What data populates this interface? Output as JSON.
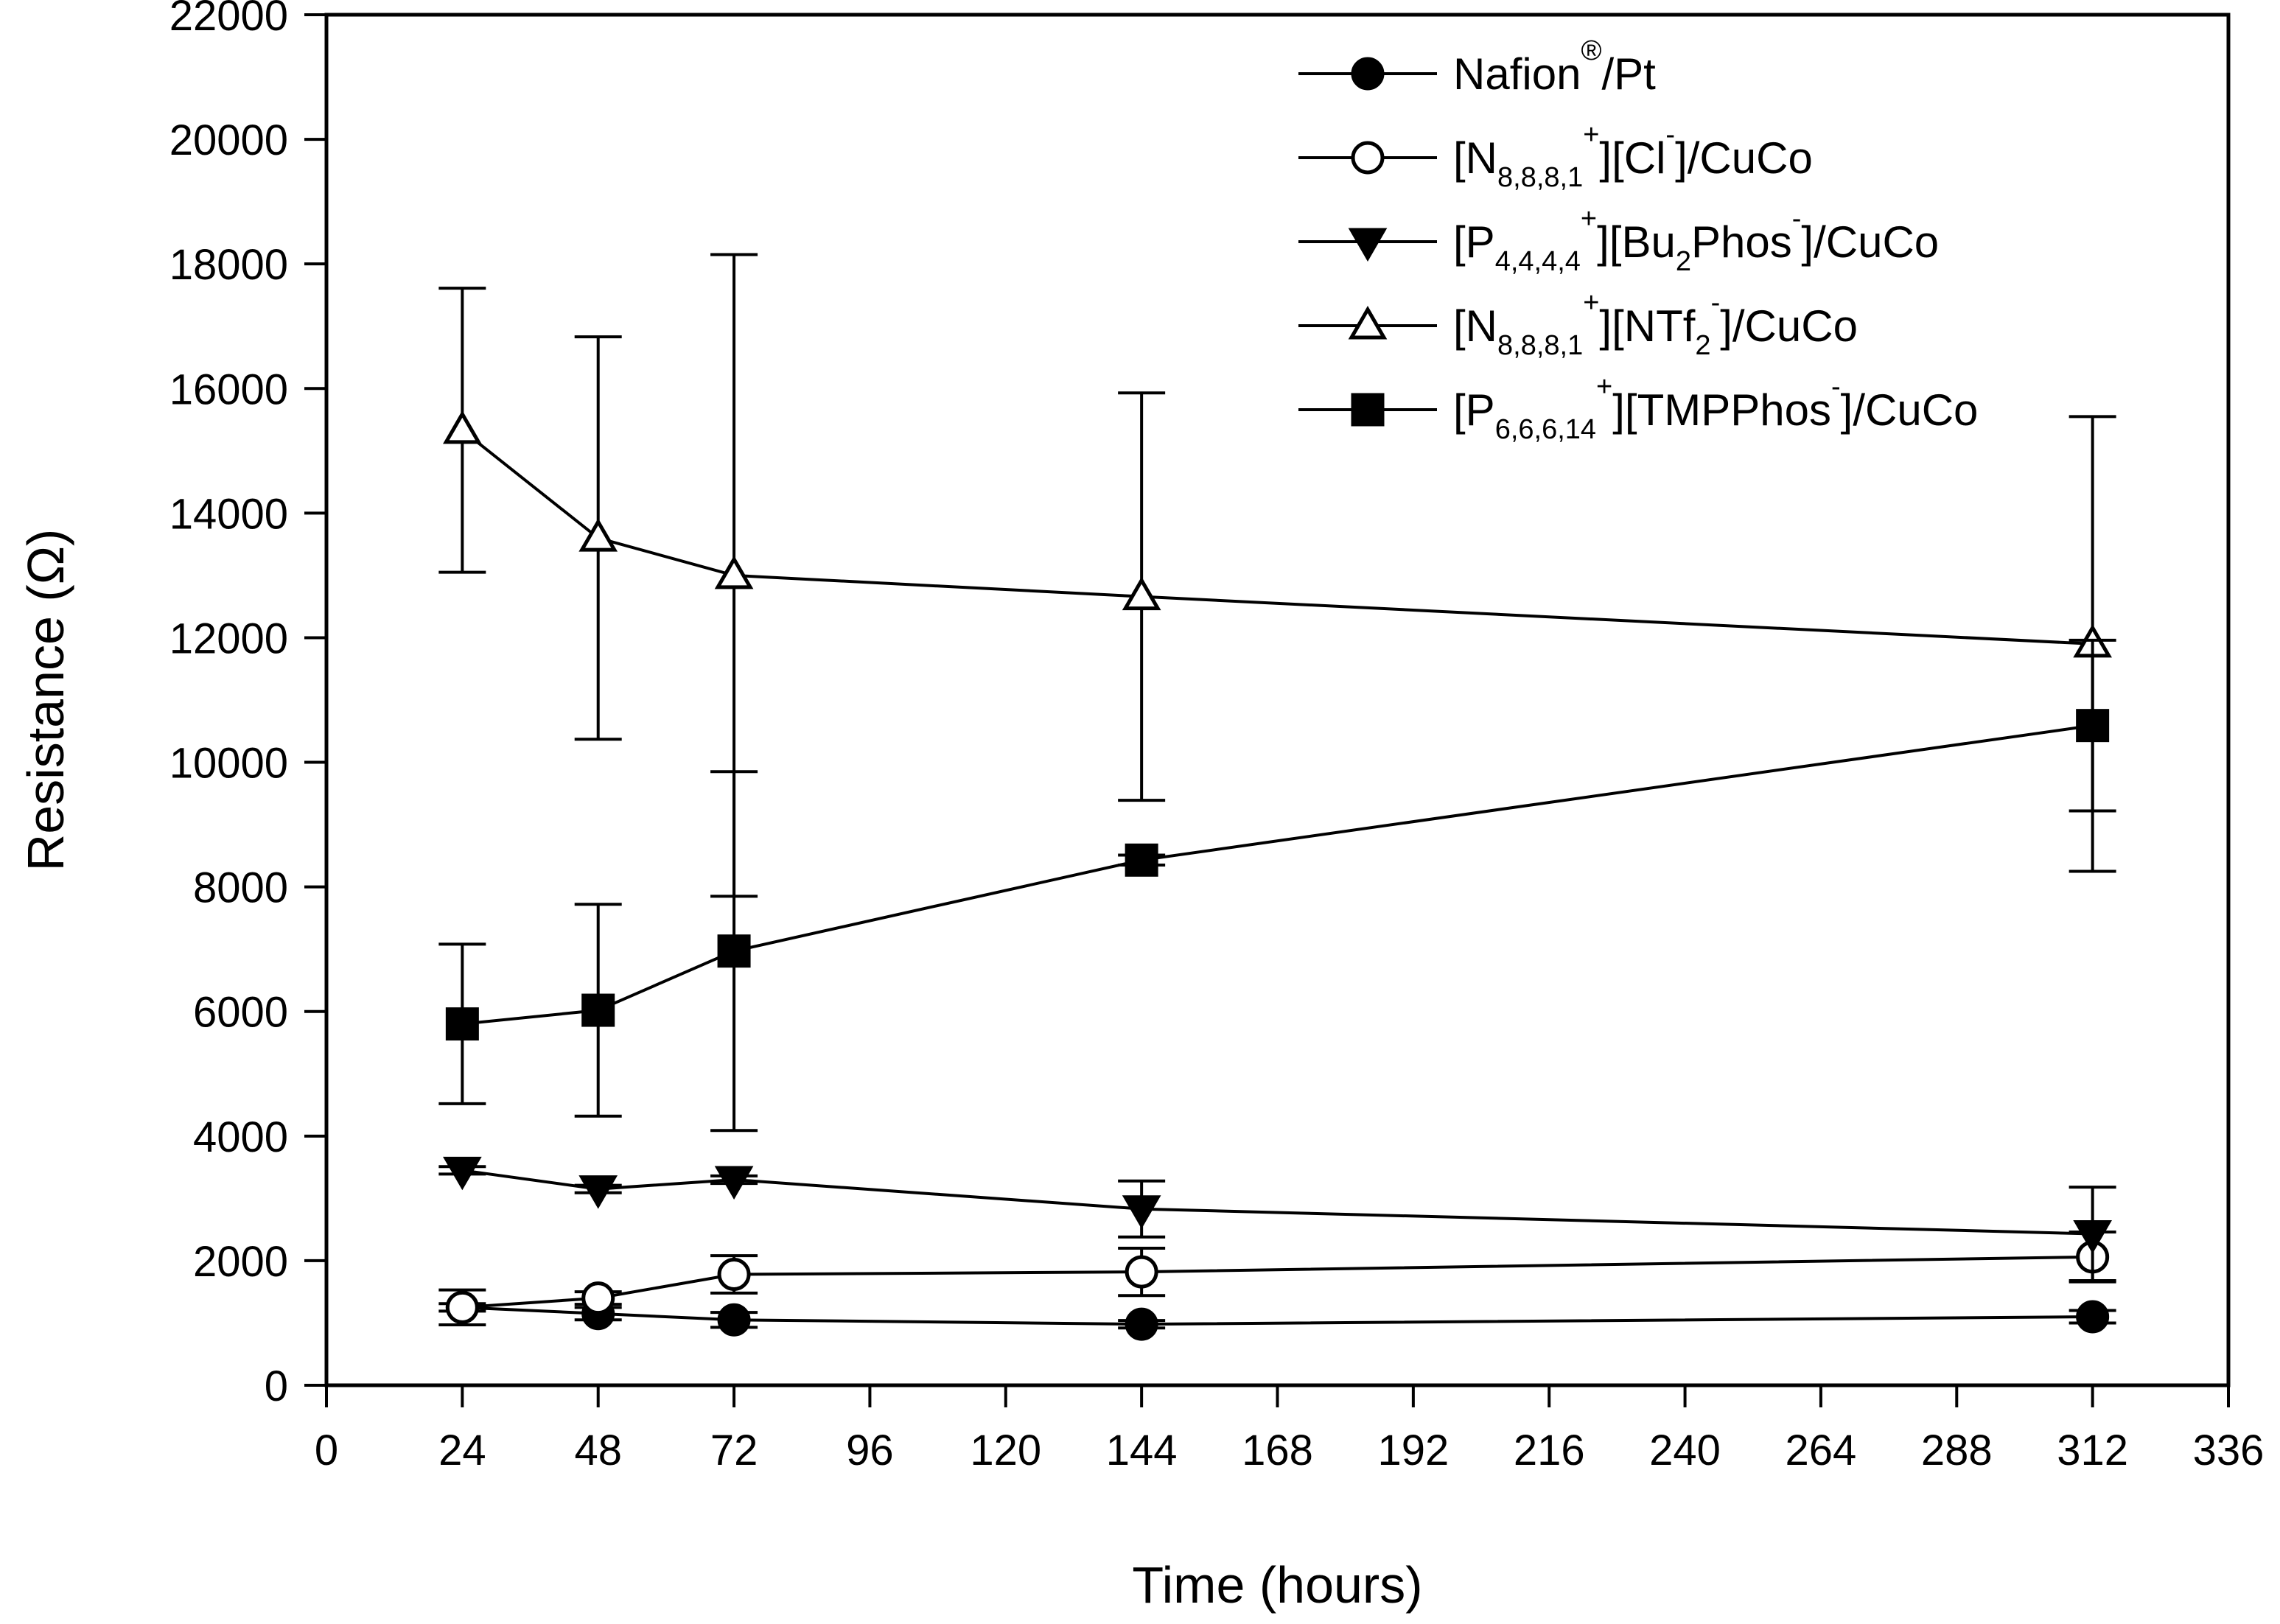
{
  "chart_data": {
    "type": "line",
    "title": "",
    "xlabel": "Time (hours)",
    "ylabel": "Resistance (Ω)",
    "xlim": [
      0,
      336
    ],
    "ylim": [
      0,
      22000
    ],
    "grid": false,
    "legend_position": "top-right",
    "xticks": [
      0,
      24,
      48,
      72,
      96,
      120,
      144,
      168,
      192,
      216,
      240,
      264,
      288,
      312,
      336
    ],
    "yticks": [
      0,
      2000,
      4000,
      6000,
      8000,
      10000,
      12000,
      14000,
      16000,
      18000,
      20000,
      22000
    ],
    "series": [
      {
        "name": "Nafion®/Pt",
        "legend_parts": [
          {
            "t": "Nafion",
            "s": "n"
          },
          {
            "t": "®",
            "s": "sup"
          },
          {
            "t": "/Pt",
            "s": "n"
          }
        ],
        "marker": "circle",
        "filled": true,
        "x": [
          24,
          48,
          72,
          144,
          312
        ],
        "y": [
          1250,
          1150,
          1050,
          980,
          1100
        ],
        "err": [
          280,
          100,
          120,
          60,
          100
        ]
      },
      {
        "name": "[N8,8,8,1+][Cl-]/CuCo",
        "legend_parts": [
          {
            "t": "[N",
            "s": "n"
          },
          {
            "t": "8,8,8,1",
            "s": "sub"
          },
          {
            "t": "+",
            "s": "sup"
          },
          {
            "t": "][Cl",
            "s": "n"
          },
          {
            "t": "-",
            "s": "sup"
          },
          {
            "t": "]/CuCo",
            "s": "n"
          }
        ],
        "marker": "circle",
        "filled": false,
        "x": [
          24,
          48,
          72,
          144,
          312
        ],
        "y": [
          1250,
          1400,
          1780,
          1820,
          2060
        ],
        "err": [
          60,
          100,
          300,
          380,
          400
        ]
      },
      {
        "name": "[P4,4,4,4+][Bu2Phos-]/CuCo",
        "legend_parts": [
          {
            "t": "[P",
            "s": "n"
          },
          {
            "t": "4,4,4,4",
            "s": "sub"
          },
          {
            "t": "+",
            "s": "sup"
          },
          {
            "t": "][Bu",
            "s": "n"
          },
          {
            "t": "2",
            "s": "sub"
          },
          {
            "t": "Phos",
            "s": "n"
          },
          {
            "t": "-",
            "s": "sup"
          },
          {
            "t": "]/CuCo",
            "s": "n"
          }
        ],
        "marker": "triangle-down",
        "filled": true,
        "x": [
          24,
          48,
          72,
          144,
          312
        ],
        "y": [
          3450,
          3150,
          3300,
          2830,
          2430
        ],
        "err": [
          60,
          60,
          60,
          450,
          750
        ]
      },
      {
        "name": "[N8,8,8,1+][NTf2-]/CuCo",
        "legend_parts": [
          {
            "t": "[N",
            "s": "n"
          },
          {
            "t": "8,8,8,1",
            "s": "sub"
          },
          {
            "t": "+",
            "s": "sup"
          },
          {
            "t": "][NTf",
            "s": "n"
          },
          {
            "t": "2",
            "s": "sub"
          },
          {
            "t": "-",
            "s": "sup"
          },
          {
            "t": "]/CuCo",
            "s": "n"
          }
        ],
        "marker": "triangle-up",
        "filled": false,
        "x": [
          24,
          48,
          72,
          144,
          312
        ],
        "y": [
          15330,
          13600,
          13000,
          12660,
          11900
        ],
        "err": [
          2280,
          3230,
          5150,
          3270,
          3650
        ]
      },
      {
        "name": "[P6,6,6,14+][TMPPhos-]/CuCo",
        "legend_parts": [
          {
            "t": "[P",
            "s": "n"
          },
          {
            "t": "6,6,6,14",
            "s": "sub"
          },
          {
            "t": "+",
            "s": "sup"
          },
          {
            "t": "][TMPPhos",
            "s": "n"
          },
          {
            "t": "-",
            "s": "sup"
          },
          {
            "t": "]/CuCo",
            "s": "n"
          }
        ],
        "marker": "square",
        "filled": true,
        "x": [
          24,
          48,
          72,
          144,
          312
        ],
        "y": [
          5800,
          6020,
          6970,
          8430,
          10590
        ],
        "err": [
          1280,
          1700,
          2880,
          80,
          1370
        ]
      }
    ]
  }
}
